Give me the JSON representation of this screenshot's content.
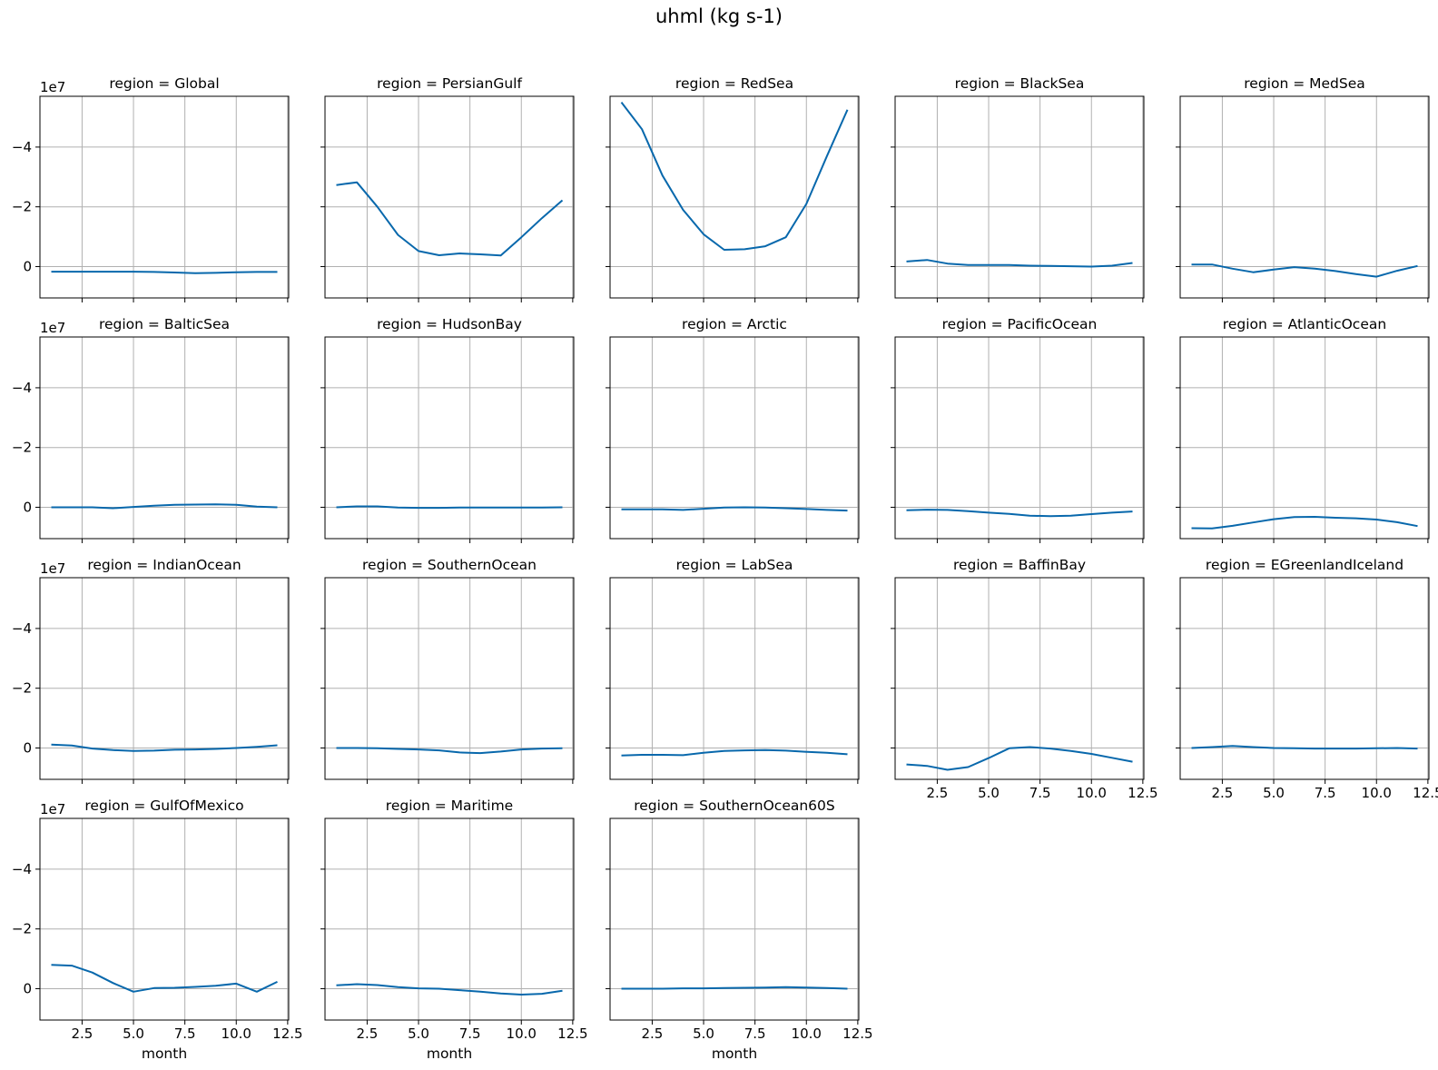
{
  "title": "uhml (kg s-1)",
  "chart_data": {
    "type": "line",
    "title": "uhml (kg s-1)",
    "xlabel": "month",
    "ylabel": "",
    "y_scale_label": "1e7",
    "y_inverted": true,
    "xlim": [
      0.45,
      12.55
    ],
    "ylim": [
      -5.7,
      1.05
    ],
    "x_ticks": [
      2.5,
      5.0,
      7.5,
      10.0,
      12.5
    ],
    "x_tick_labels": [
      "2.5",
      "5.0",
      "7.5",
      "10.0",
      "12.5"
    ],
    "y_ticks": [
      -4,
      -2,
      0
    ],
    "y_tick_labels": [
      "−4",
      "−2",
      "0"
    ],
    "grid": true,
    "line_color": "#0868ac",
    "months": [
      1,
      2,
      3,
      4,
      5,
      6,
      7,
      8,
      9,
      10,
      11,
      12
    ],
    "panels": [
      {
        "title": "region = Global",
        "values": [
          0.17,
          0.17,
          0.17,
          0.17,
          0.17,
          0.18,
          0.2,
          0.22,
          0.21,
          0.19,
          0.18,
          0.18
        ]
      },
      {
        "title": "region = PersianGulf",
        "values": [
          -2.73,
          -2.82,
          -2.0,
          -1.06,
          -0.52,
          -0.38,
          -0.44,
          -0.41,
          -0.37,
          -0.98,
          -1.62,
          -2.22
        ]
      },
      {
        "title": "region = RedSea",
        "values": [
          -5.5,
          -4.6,
          -3.05,
          -1.9,
          -1.08,
          -0.56,
          -0.58,
          -0.68,
          -0.98,
          -2.1,
          -3.7,
          -5.25
        ]
      },
      {
        "title": "region = BlackSea",
        "values": [
          -0.17,
          -0.22,
          -0.1,
          -0.05,
          -0.05,
          -0.05,
          -0.03,
          -0.02,
          -0.01,
          0.0,
          -0.03,
          -0.12
        ]
      },
      {
        "title": "region = MedSea",
        "values": [
          -0.07,
          -0.07,
          0.07,
          0.19,
          0.1,
          0.02,
          0.07,
          0.15,
          0.25,
          0.34,
          0.14,
          -0.02
        ]
      },
      {
        "title": "region = BalticSea",
        "values": [
          0.0,
          0.0,
          0.0,
          0.03,
          -0.01,
          -0.05,
          -0.08,
          -0.09,
          -0.1,
          -0.08,
          -0.02,
          0.0
        ]
      },
      {
        "title": "region = HudsonBay",
        "values": [
          0.0,
          -0.03,
          -0.03,
          0.01,
          0.02,
          0.02,
          0.01,
          0.01,
          0.01,
          0.01,
          0.01,
          0.0
        ]
      },
      {
        "title": "region = Arctic",
        "values": [
          0.07,
          0.07,
          0.07,
          0.09,
          0.05,
          0.01,
          0.0,
          0.01,
          0.03,
          0.06,
          0.09,
          0.11
        ]
      },
      {
        "title": "region = PacificOcean",
        "values": [
          0.1,
          0.08,
          0.09,
          0.13,
          0.18,
          0.22,
          0.28,
          0.3,
          0.28,
          0.23,
          0.18,
          0.14
        ]
      },
      {
        "title": "region = AtlanticOcean",
        "values": [
          0.7,
          0.71,
          0.62,
          0.51,
          0.4,
          0.33,
          0.32,
          0.35,
          0.37,
          0.41,
          0.5,
          0.63
        ]
      },
      {
        "title": "region = IndianOcean",
        "values": [
          -0.11,
          -0.08,
          0.02,
          0.07,
          0.1,
          0.09,
          0.06,
          0.05,
          0.03,
          0.0,
          -0.04,
          -0.09
        ]
      },
      {
        "title": "region = SouthernOcean",
        "values": [
          0.0,
          0.0,
          0.01,
          0.03,
          0.05,
          0.08,
          0.15,
          0.17,
          0.12,
          0.05,
          0.02,
          0.01
        ]
      },
      {
        "title": "region = LabSea",
        "values": [
          0.25,
          0.23,
          0.23,
          0.24,
          0.16,
          0.1,
          0.08,
          0.07,
          0.09,
          0.13,
          0.16,
          0.21
        ]
      },
      {
        "title": "region = BaffinBay",
        "values": [
          0.55,
          0.6,
          0.73,
          0.64,
          0.34,
          0.01,
          -0.03,
          0.02,
          0.1,
          0.2,
          0.33,
          0.46
        ]
      },
      {
        "title": "region = EGreenlandIceland",
        "values": [
          0.0,
          -0.03,
          -0.07,
          -0.03,
          0.0,
          0.01,
          0.02,
          0.02,
          0.02,
          0.01,
          0.0,
          0.02
        ]
      },
      {
        "title": "region = GulfOfMexico",
        "values": [
          -0.8,
          -0.77,
          -0.54,
          -0.19,
          0.1,
          -0.02,
          -0.03,
          -0.06,
          -0.1,
          -0.17,
          0.1,
          -0.23
        ]
      },
      {
        "title": "region = Maritime",
        "values": [
          -0.11,
          -0.15,
          -0.12,
          -0.05,
          -0.01,
          0.0,
          0.05,
          0.1,
          0.16,
          0.2,
          0.17,
          0.07
        ]
      },
      {
        "title": "region = SouthernOcean60S",
        "values": [
          0.0,
          0.0,
          0.0,
          -0.01,
          -0.01,
          -0.02,
          -0.03,
          -0.04,
          -0.05,
          -0.04,
          -0.02,
          0.0
        ]
      }
    ]
  }
}
